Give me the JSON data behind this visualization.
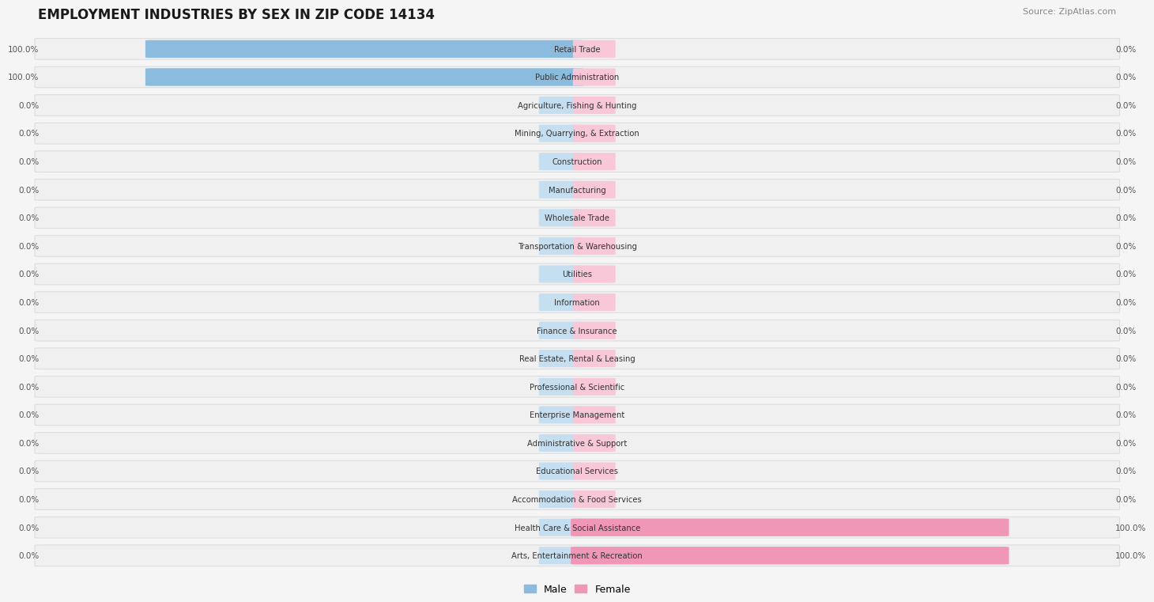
{
  "title": "EMPLOYMENT INDUSTRIES BY SEX IN ZIP CODE 14134",
  "source": "Source: ZipAtlas.com",
  "categories": [
    "Retail Trade",
    "Public Administration",
    "Agriculture, Fishing & Hunting",
    "Mining, Quarrying, & Extraction",
    "Construction",
    "Manufacturing",
    "Wholesale Trade",
    "Transportation & Warehousing",
    "Utilities",
    "Information",
    "Finance & Insurance",
    "Real Estate, Rental & Leasing",
    "Professional & Scientific",
    "Enterprise Management",
    "Administrative & Support",
    "Educational Services",
    "Accommodation & Food Services",
    "Health Care & Social Assistance",
    "Arts, Entertainment & Recreation"
  ],
  "male_values": [
    100.0,
    100.0,
    0.0,
    0.0,
    0.0,
    0.0,
    0.0,
    0.0,
    0.0,
    0.0,
    0.0,
    0.0,
    0.0,
    0.0,
    0.0,
    0.0,
    0.0,
    0.0,
    0.0
  ],
  "female_values": [
    0.0,
    0.0,
    0.0,
    0.0,
    0.0,
    0.0,
    0.0,
    0.0,
    0.0,
    0.0,
    0.0,
    0.0,
    0.0,
    0.0,
    0.0,
    0.0,
    0.0,
    100.0,
    100.0
  ],
  "male_color": "#8bbcde",
  "female_color": "#f097b8",
  "male_zero_bar_color": "#c5dff0",
  "female_zero_bar_color": "#f9c8d8",
  "row_bg": "#f0f0f0",
  "row_border": "#dddddd",
  "bg_color": "#f5f5f5",
  "title_color": "#1a1a1a",
  "label_color": "#333333",
  "value_color": "#555555"
}
